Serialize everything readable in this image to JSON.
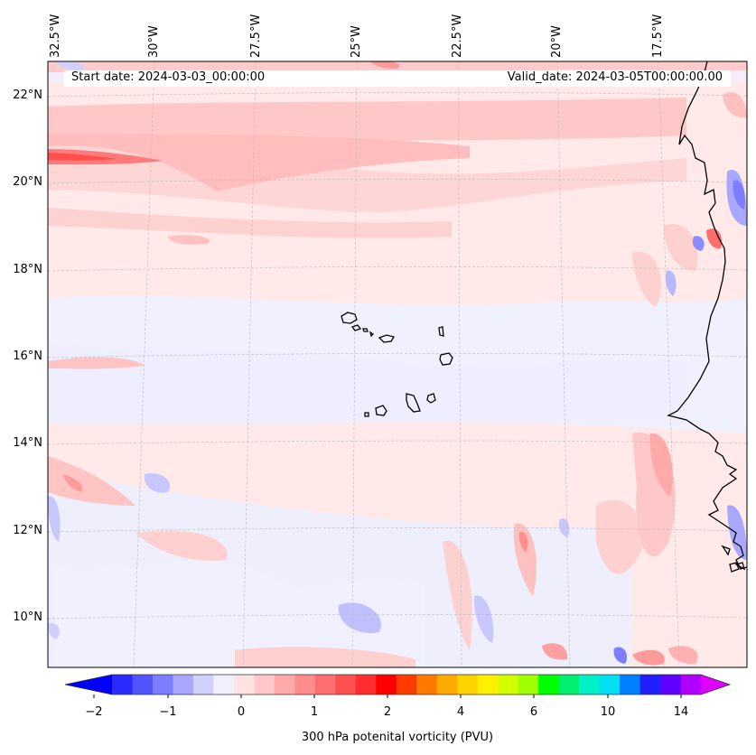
{
  "map": {
    "start_date": "Start date: 2024-03-03_00:00:00",
    "valid_date": "Valid_date: 2024-03-05T00:00:00.00",
    "lon_labels": [
      "32.5°W",
      "30°W",
      "27.5°W",
      "25°W",
      "22.5°W",
      "20°W",
      "17.5°W"
    ],
    "lat_labels": [
      "22°N",
      "20°N",
      "18°N",
      "16°N",
      "14°N",
      "12°N",
      "10°N"
    ]
  },
  "colorbar": {
    "title": "300 hPa potenital vorticity (PVU)",
    "tick_labels": [
      "−2",
      "−1",
      "0",
      "1",
      "2",
      "4",
      "6",
      "10",
      "14"
    ],
    "colors": [
      "#0000ff",
      "#2a2aff",
      "#5454ff",
      "#7d7dff",
      "#a8a8ff",
      "#d1d1ff",
      "#f0f0ff",
      "#ffe3e3",
      "#ffc7c7",
      "#ffaaaa",
      "#ff8c8c",
      "#ff6e6e",
      "#ff5050",
      "#ff2d2d",
      "#ff0000",
      "#ff3c00",
      "#ff7800",
      "#ffaa00",
      "#ffd200",
      "#fff000",
      "#d2ff00",
      "#a0ff00",
      "#00ff00",
      "#00f070",
      "#00f0c8",
      "#00e0f0",
      "#0080ff",
      "#2020ff",
      "#6000ff",
      "#b000ff",
      "#e000ff"
    ]
  }
}
